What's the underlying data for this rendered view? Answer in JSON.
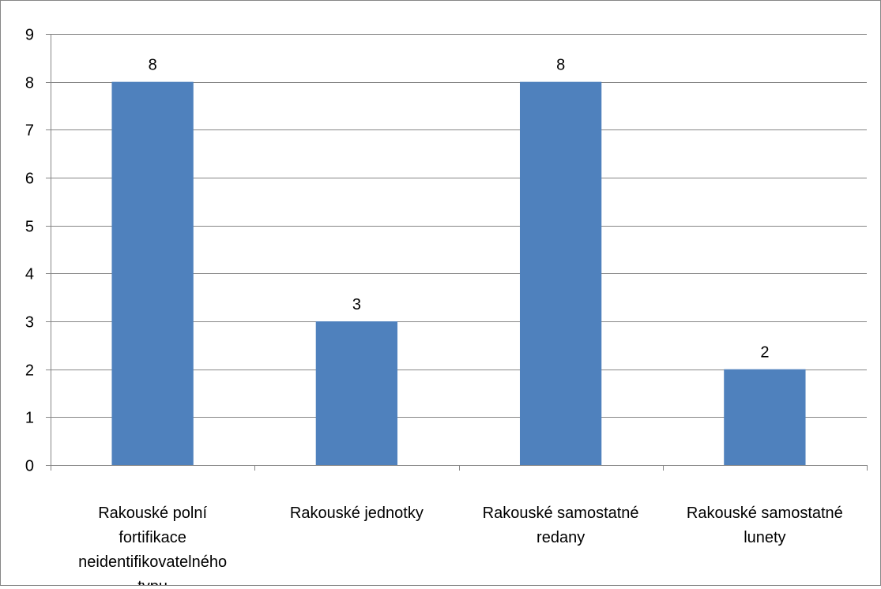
{
  "chart_data": {
    "type": "bar",
    "title": "",
    "xlabel": "",
    "ylabel": "",
    "categories": [
      [
        "Rakouské polní",
        "fortifikace",
        "neidentifikovatelného",
        "typu"
      ],
      [
        "Rakouské jednotky"
      ],
      [
        "Rakouské samostatné",
        "redany"
      ],
      [
        "Rakouské samostatné",
        "lunety"
      ]
    ],
    "values": [
      8,
      3,
      8,
      2
    ],
    "data_labels": [
      "8",
      "3",
      "8",
      "2"
    ],
    "ylim": [
      0,
      9
    ],
    "yticks": [
      0,
      1,
      2,
      3,
      4,
      5,
      6,
      7,
      8,
      9
    ],
    "grid": true,
    "legend": "none",
    "colors": {
      "bar": "#4f81bd",
      "gridline": "#868686",
      "axis": "#868686",
      "text": "#000000"
    }
  }
}
